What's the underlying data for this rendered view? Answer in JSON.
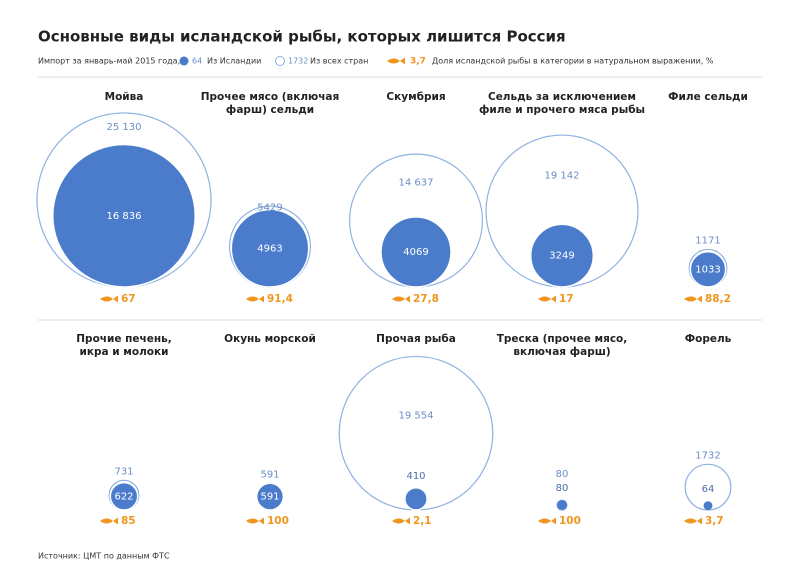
{
  "chart_data": {
    "type": "nested-bubble",
    "title": "Основные виды исландской рыбы, которых лишится Россия",
    "legend": {
      "title": "Импорт за январь-май 2015 года, т",
      "samples": [
        64,
        1732,
        {
          "value": 3.7,
          "label": "3,7"
        }
      ]
    },
    "categories": [
      [
        "Мойва"
      ],
      [
        "Прочее мясо (включая",
        "фарш) сельди"
      ],
      [
        "Скумбрия"
      ],
      [
        "Сельдь за исключением",
        "филе и прочего мяса рыбы"
      ],
      [
        "Филе сельди"
      ],
      [
        "Прочие печень,",
        "икра и молоки"
      ],
      [
        "Окунь морской"
      ],
      [
        "Прочая рыба"
      ],
      [
        "Треска (прочее мясо,",
        "включая фарш)"
      ],
      [
        "Форель"
      ]
    ],
    "series": [
      {
        "name": "Из Исландии",
        "color": "#4b7ccc",
        "values": [
          16836,
          4963,
          4069,
          3249,
          1033,
          622,
          591,
          410,
          80,
          64
        ],
        "value_labels": [
          "16 836",
          "4963",
          "4069",
          "3249",
          "1033",
          "622",
          "591",
          "410",
          "80",
          "64"
        ]
      },
      {
        "name": "Из всех стран",
        "color": "#8fb1e3",
        "values": [
          25130,
          5429,
          14637,
          19142,
          1171,
          731,
          591,
          19554,
          80,
          1732
        ],
        "value_labels": [
          "25 130",
          "5429",
          "14 637",
          "19 142",
          "1171",
          "731",
          "591",
          "19 554",
          "80",
          "1732"
        ]
      },
      {
        "name": "Доля исландской рыбы в категории в натуральном выражении, %",
        "color": "#f0961e",
        "values": [
          67,
          91.4,
          27.8,
          17,
          88.2,
          85,
          100,
          2.1,
          100,
          3.7
        ],
        "value_labels": [
          "67",
          "91,4",
          "27,8",
          "17",
          "88,2",
          "85",
          "100",
          "2,1",
          "100",
          "3,7"
        ]
      }
    ],
    "source": "Источник: ЦМТ по данным ФТС"
  }
}
